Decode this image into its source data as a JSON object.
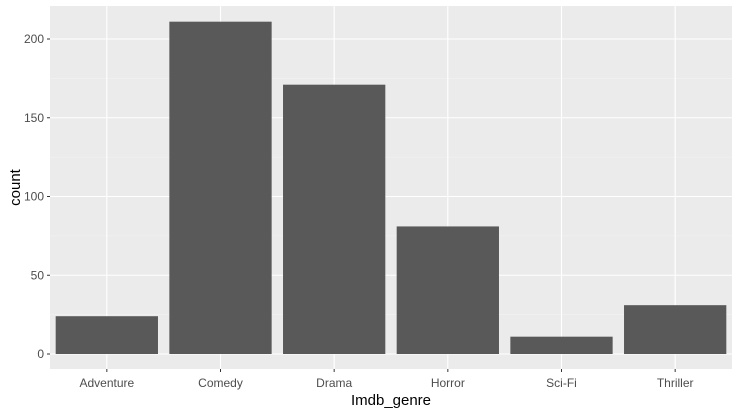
{
  "chart_data": {
    "type": "bar",
    "title": "",
    "xlabel": "Imdb_genre",
    "ylabel": "count",
    "categories": [
      "Adventure",
      "Comedy",
      "Drama",
      "Horror",
      "Sci-Fi",
      "Thriller"
    ],
    "values": [
      24,
      211,
      171,
      81,
      11,
      31
    ],
    "ylim": [
      0,
      220
    ],
    "yticks": [
      0,
      50,
      100,
      150,
      200
    ],
    "grid": true,
    "legend": "none",
    "colors": {
      "bar": "#595959",
      "panel_background": "#ebebeb",
      "grid_major": "#ffffff",
      "grid_minor": "#f5f5f5",
      "tick_label": "#4d4d4d",
      "axis_title": "#000000"
    }
  }
}
